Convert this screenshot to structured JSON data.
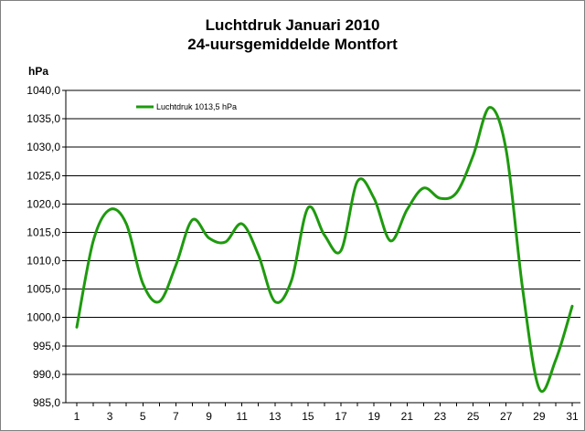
{
  "chart_data": {
    "type": "line",
    "title": [
      "Luchtdruk Januari 2010",
      "24-uursgemiddelde Montfort"
    ],
    "ylabel": "hPa",
    "xlabel": "",
    "ylim": [
      985,
      1040
    ],
    "ytick_step": 5,
    "ytick_labels": [
      "985,0",
      "990,0",
      "995,0",
      "1000,0",
      "1005,0",
      "1010,0",
      "1015,0",
      "1020,0",
      "1025,0",
      "1030,0",
      "1035,0",
      "1040,0"
    ],
    "xlim": [
      1,
      31
    ],
    "xtick_labels": [
      "1",
      "3",
      "5",
      "7",
      "9",
      "11",
      "13",
      "15",
      "17",
      "19",
      "21",
      "23",
      "25",
      "27",
      "29",
      "31"
    ],
    "grid": "horizontal",
    "legend_position": "top-left",
    "series": [
      {
        "name": "Luchtdruk 1013,5 hPa",
        "color": "#1e9a0e",
        "x": [
          1,
          2,
          3,
          4,
          5,
          6,
          7,
          8,
          9,
          10,
          11,
          12,
          13,
          14,
          15,
          16,
          17,
          18,
          19,
          20,
          21,
          22,
          23,
          24,
          25,
          26,
          27,
          28,
          29,
          30,
          31
        ],
        "values": [
          998.3,
          1013.5,
          1019.0,
          1016.5,
          1006.0,
          1002.8,
          1009.2,
          1017.2,
          1014.0,
          1013.3,
          1016.5,
          1011.0,
          1002.8,
          1006.5,
          1019.3,
          1014.5,
          1011.8,
          1024.0,
          1021.0,
          1013.5,
          1019.0,
          1022.8,
          1021.0,
          1022.0,
          1028.5,
          1037.0,
          1029.5,
          1005.0,
          987.5,
          992.5,
          1002.0
        ]
      }
    ]
  }
}
